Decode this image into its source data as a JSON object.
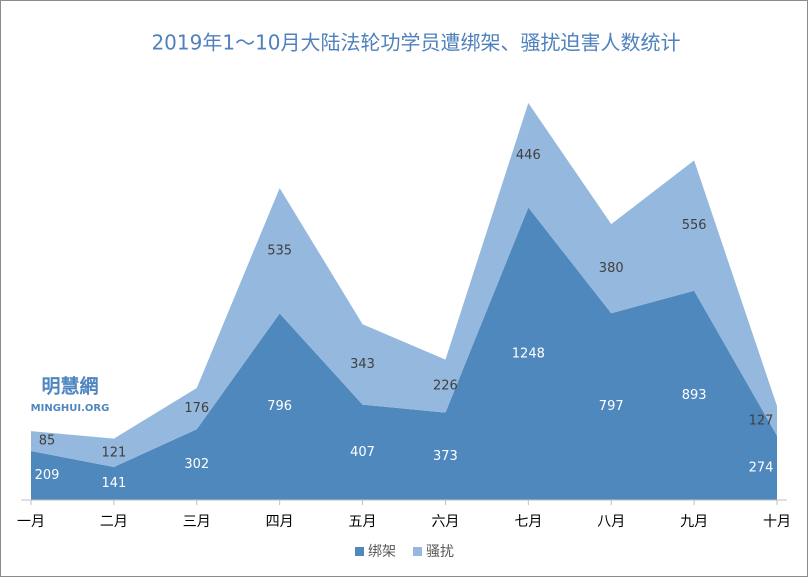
{
  "chart_data": {
    "type": "area",
    "stacked": true,
    "title": "2019年1～10月大陆法轮功学员遭绑架、骚扰迫害人数统计",
    "watermark": {
      "name": "明慧網",
      "url": "MINGHUI.ORG"
    },
    "categories": [
      "一月",
      "二月",
      "三月",
      "四月",
      "五月",
      "六月",
      "七月",
      "八月",
      "九月",
      "十月"
    ],
    "series": [
      {
        "name": "绑架",
        "color": "#4f88bd",
        "label_color": "#ffffff",
        "values": [
          209,
          141,
          302,
          796,
          407,
          373,
          1248,
          797,
          893,
          274
        ]
      },
      {
        "name": "骚扰",
        "color": "#95b8de",
        "label_color": "#404040",
        "values": [
          85,
          121,
          176,
          535,
          343,
          226,
          446,
          380,
          556,
          127
        ]
      }
    ],
    "legend": "bottom"
  }
}
